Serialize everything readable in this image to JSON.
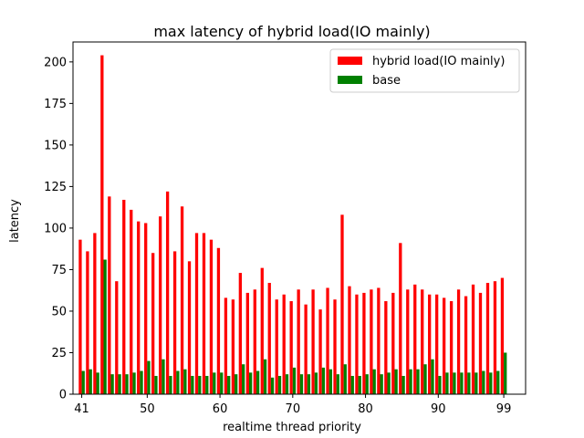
{
  "chart_data": {
    "type": "bar",
    "title": "max latency of hybrid load(IO mainly)",
    "xlabel": "realtime thread priority",
    "ylabel": "latency",
    "ylim": [
      0,
      212
    ],
    "xlim": [
      39.8,
      102.0
    ],
    "xticks": [
      41,
      50,
      60,
      70,
      80,
      90,
      99
    ],
    "yticks": [
      0,
      25,
      50,
      75,
      100,
      125,
      150,
      175,
      200
    ],
    "legend_position": "top-right",
    "grid": false,
    "x": [
      41,
      42,
      43,
      44,
      45,
      46,
      47,
      48,
      49,
      50,
      51,
      52,
      53,
      54,
      55,
      56,
      57,
      58,
      59,
      60,
      61,
      62,
      63,
      64,
      65,
      66,
      67,
      68,
      69,
      70,
      71,
      72,
      73,
      74,
      75,
      76,
      77,
      78,
      79,
      80,
      81,
      82,
      83,
      84,
      85,
      86,
      87,
      88,
      89,
      90,
      91,
      92,
      93,
      94,
      95,
      96,
      97,
      98,
      99
    ],
    "series": [
      {
        "name": "hybrid load(IO mainly)",
        "color": "#ff0000",
        "values": [
          93,
          86,
          97,
          204,
          119,
          68,
          117,
          111,
          104,
          103,
          85,
          107,
          122,
          86,
          113,
          80,
          97,
          97,
          93,
          88,
          58,
          57,
          73,
          61,
          63,
          76,
          67,
          57,
          60,
          56,
          63,
          54,
          63,
          51,
          64,
          57,
          108,
          65,
          60,
          61,
          63,
          64,
          56,
          61,
          91,
          63,
          66,
          63,
          60,
          60,
          58,
          56,
          63,
          59,
          66,
          61,
          67,
          68,
          70
        ]
      },
      {
        "name": "base",
        "color": "#008000",
        "values": [
          14,
          15,
          13,
          81,
          12,
          12,
          12,
          13,
          14,
          20,
          11,
          21,
          11,
          14,
          15,
          11,
          11,
          11,
          13,
          13,
          11,
          12,
          18,
          13,
          14,
          21,
          10,
          11,
          12,
          16,
          12,
          12,
          13,
          16,
          15,
          12,
          18,
          11,
          11,
          12,
          15,
          12,
          13,
          15,
          11,
          15,
          15,
          18,
          21,
          11,
          13,
          13,
          13,
          13,
          13,
          14,
          13,
          14,
          25
        ]
      }
    ]
  }
}
